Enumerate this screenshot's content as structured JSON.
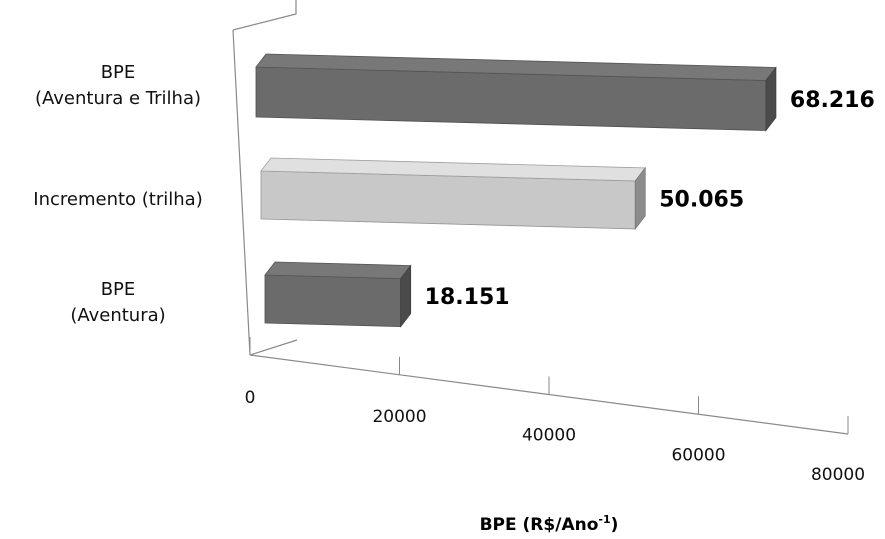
{
  "chart_data": {
    "type": "bar",
    "orientation": "horizontal",
    "style": "3d",
    "categories": [
      [
        "BPE",
        "(Aventura e Trilha)"
      ],
      [
        "Incremento (trilha)"
      ],
      [
        "BPE",
        "(Aventura)"
      ]
    ],
    "values": [
      68216,
      50065,
      18151
    ],
    "data_labels": [
      "68.216",
      "50.065",
      "18.151"
    ],
    "colors": [
      "#6b6b6b",
      "#c8c8c8",
      "#6b6b6b"
    ],
    "x_ticks": [
      "0",
      "20000",
      "40000",
      "60000",
      "80000"
    ],
    "xlim": [
      0,
      80000
    ],
    "xlabel_main": "BPE (R$/Ano",
    "xlabel_sup": "-1",
    "xlabel_end": ")",
    "grid": false,
    "legend": "none"
  }
}
